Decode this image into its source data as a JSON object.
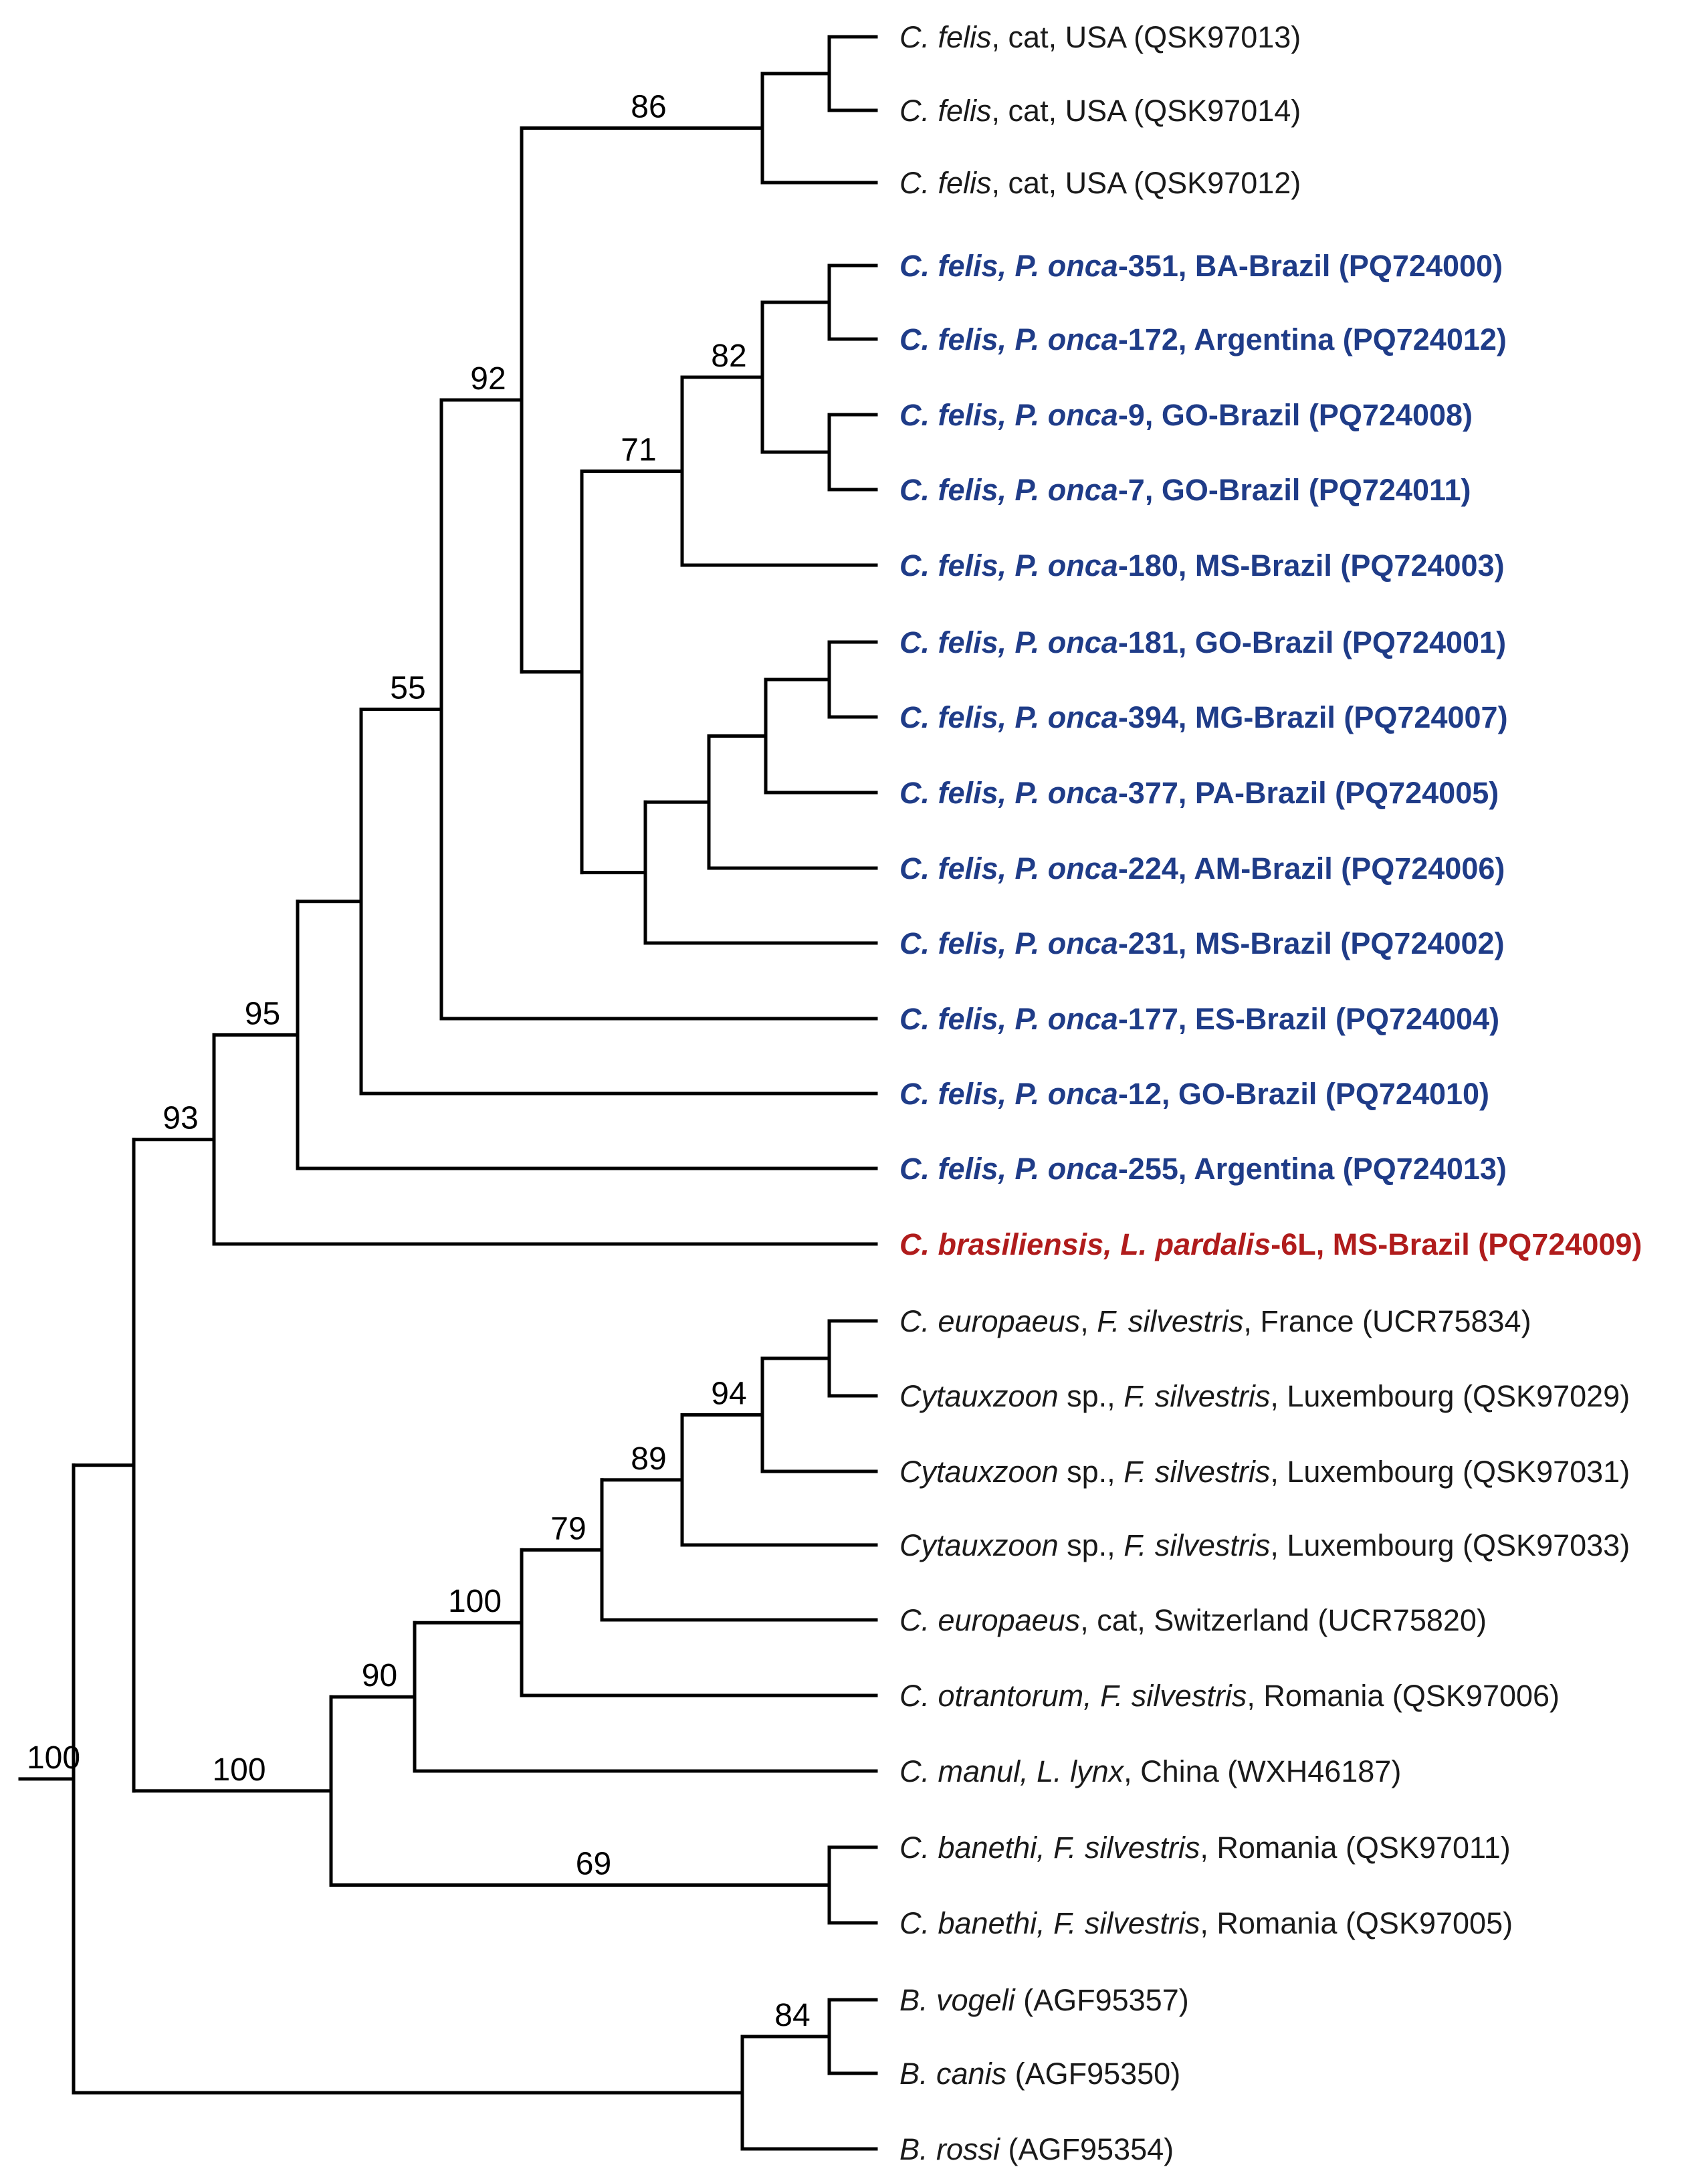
{
  "colors": {
    "branch": "#000000",
    "reference": "#1a1a1a",
    "pantherus_onca": "#1f3c88",
    "new_species": "#b01c1c"
  },
  "leaves": [
    {
      "id": "L1",
      "style": "black",
      "parts": [
        {
          "t": "C. felis",
          "i": true
        },
        {
          "t": ", cat, USA (QSK97013)",
          "i": false
        }
      ]
    },
    {
      "id": "L2",
      "style": "black",
      "parts": [
        {
          "t": "C. felis",
          "i": true
        },
        {
          "t": ", cat, USA (QSK97014)",
          "i": false
        }
      ]
    },
    {
      "id": "L3",
      "style": "black",
      "parts": [
        {
          "t": "C. felis",
          "i": true
        },
        {
          "t": ", cat, USA (QSK97012)",
          "i": false
        }
      ]
    },
    {
      "id": "L4",
      "style": "blue",
      "parts": [
        {
          "t": "C. felis, P. onca",
          "i": true
        },
        {
          "t": "-351, BA-Brazil (PQ724000)",
          "i": false
        }
      ]
    },
    {
      "id": "L5",
      "style": "blue",
      "parts": [
        {
          "t": "C. felis, P. onca",
          "i": true
        },
        {
          "t": "-172, Argentina (PQ724012)",
          "i": false
        }
      ]
    },
    {
      "id": "L6",
      "style": "blue",
      "parts": [
        {
          "t": "C. felis, P. onca",
          "i": true
        },
        {
          "t": "-9, GO-Brazil (PQ724008)",
          "i": false
        }
      ]
    },
    {
      "id": "L7",
      "style": "blue",
      "parts": [
        {
          "t": "C. felis, P. onca",
          "i": true
        },
        {
          "t": "-7, GO-Brazil (PQ724011)",
          "i": false
        }
      ]
    },
    {
      "id": "L8",
      "style": "blue",
      "parts": [
        {
          "t": "C. felis, P. onca",
          "i": true
        },
        {
          "t": "-180, MS-Brazil (PQ724003)",
          "i": false
        }
      ]
    },
    {
      "id": "L9",
      "style": "blue",
      "parts": [
        {
          "t": "C. felis, P. onca",
          "i": true
        },
        {
          "t": "-181, GO-Brazil (PQ724001)",
          "i": false
        }
      ]
    },
    {
      "id": "L10",
      "style": "blue",
      "parts": [
        {
          "t": "C. felis, P. onca",
          "i": true
        },
        {
          "t": "-394, MG-Brazil (PQ724007)",
          "i": false
        }
      ]
    },
    {
      "id": "L11",
      "style": "blue",
      "parts": [
        {
          "t": "C. felis, P. onca",
          "i": true
        },
        {
          "t": "-377, PA-Brazil (PQ724005)",
          "i": false
        }
      ]
    },
    {
      "id": "L12",
      "style": "blue",
      "parts": [
        {
          "t": "C. felis, P. onca",
          "i": true
        },
        {
          "t": "-224, AM-Brazil (PQ724006)",
          "i": false
        }
      ]
    },
    {
      "id": "L13",
      "style": "blue",
      "parts": [
        {
          "t": "C. felis, P. onca",
          "i": true
        },
        {
          "t": "-231, MS-Brazil (PQ724002)",
          "i": false
        }
      ]
    },
    {
      "id": "L14",
      "style": "blue",
      "parts": [
        {
          "t": "C. felis, P. onca",
          "i": true
        },
        {
          "t": "-177, ES-Brazil (PQ724004)",
          "i": false
        }
      ]
    },
    {
      "id": "L15",
      "style": "blue",
      "parts": [
        {
          "t": "C. felis, P. onca",
          "i": true
        },
        {
          "t": "-12, GO-Brazil (PQ724010)",
          "i": false
        }
      ]
    },
    {
      "id": "L16",
      "style": "blue",
      "parts": [
        {
          "t": "C. felis, P. onca",
          "i": true
        },
        {
          "t": "-255, Argentina (PQ724013)",
          "i": false
        }
      ]
    },
    {
      "id": "L17",
      "style": "red",
      "parts": [
        {
          "t": "C. brasiliensis, L. pardalis",
          "i": true
        },
        {
          "t": "-6L, MS-Brazil (PQ724009)",
          "i": false
        }
      ]
    },
    {
      "id": "L18",
      "style": "black",
      "parts": [
        {
          "t": "C. europaeus",
          "i": true
        },
        {
          "t": ", ",
          "i": false
        },
        {
          "t": "F. silvestris",
          "i": true
        },
        {
          "t": ", France (UCR75834)",
          "i": false
        }
      ]
    },
    {
      "id": "L19",
      "style": "black",
      "parts": [
        {
          "t": "Cytauxzoon",
          "i": true
        },
        {
          "t": " sp., ",
          "i": false
        },
        {
          "t": "F. silvestris",
          "i": true
        },
        {
          "t": ", Luxembourg (QSK97029)",
          "i": false
        }
      ]
    },
    {
      "id": "L20",
      "style": "black",
      "parts": [
        {
          "t": "Cytauxzoon",
          "i": true
        },
        {
          "t": " sp., ",
          "i": false
        },
        {
          "t": "F. silvestris",
          "i": true
        },
        {
          "t": ", Luxembourg (QSK97031)",
          "i": false
        }
      ]
    },
    {
      "id": "L21",
      "style": "black",
      "parts": [
        {
          "t": "Cytauxzoon",
          "i": true
        },
        {
          "t": " sp., ",
          "i": false
        },
        {
          "t": "F. silvestris",
          "i": true
        },
        {
          "t": ", Luxembourg (QSK97033)",
          "i": false
        }
      ]
    },
    {
      "id": "L22",
      "style": "black",
      "parts": [
        {
          "t": "C. europaeus",
          "i": true
        },
        {
          "t": ", cat, Switzerland (UCR75820)",
          "i": false
        }
      ]
    },
    {
      "id": "L23",
      "style": "black",
      "parts": [
        {
          "t": "C. otrantorum, F. silvestris",
          "i": true
        },
        {
          "t": ", Romania (QSK97006)",
          "i": false
        }
      ]
    },
    {
      "id": "L24",
      "style": "black",
      "parts": [
        {
          "t": "C. manul, L. lynx",
          "i": true
        },
        {
          "t": ", China (WXH46187)",
          "i": false
        }
      ]
    },
    {
      "id": "L25",
      "style": "black",
      "parts": [
        {
          "t": "C. banethi, F. silvestris",
          "i": true
        },
        {
          "t": ", Romania (QSK97011)",
          "i": false
        }
      ]
    },
    {
      "id": "L26",
      "style": "black",
      "parts": [
        {
          "t": "C. banethi, F. silvestris",
          "i": true
        },
        {
          "t": ", Romania (QSK97005)",
          "i": false
        }
      ]
    },
    {
      "id": "L27",
      "style": "black",
      "parts": [
        {
          "t": "B. vogeli",
          "i": true
        },
        {
          "t": " (AGF95357)",
          "i": false
        }
      ]
    },
    {
      "id": "L28",
      "style": "black",
      "parts": [
        {
          "t": "B. canis",
          "i": true
        },
        {
          "t": " (AGF95350)",
          "i": false
        }
      ]
    },
    {
      "id": "L29",
      "style": "black",
      "parts": [
        {
          "t": "B. rossi",
          "i": true
        },
        {
          "t": " (AGF95354)",
          "i": false
        }
      ]
    }
  ],
  "bootstrap": {
    "N_usa": "86",
    "N_onca_broad": "92",
    "N_351_7": "82",
    "N_180_clade": "71",
    "N_onca_177": "55",
    "N_onca_12": "95",
    "N_felis_brasiliensis": "93",
    "N_europaeus_group": "94",
    "N_lux": "89",
    "N_europaeus_cat": "79",
    "N_otrantorum": "100",
    "N_manul": "90",
    "N_banethi": "69",
    "N_cytauxzoon_other": "100",
    "N_vogeli_canis": "84",
    "N_babesia": "100"
  }
}
